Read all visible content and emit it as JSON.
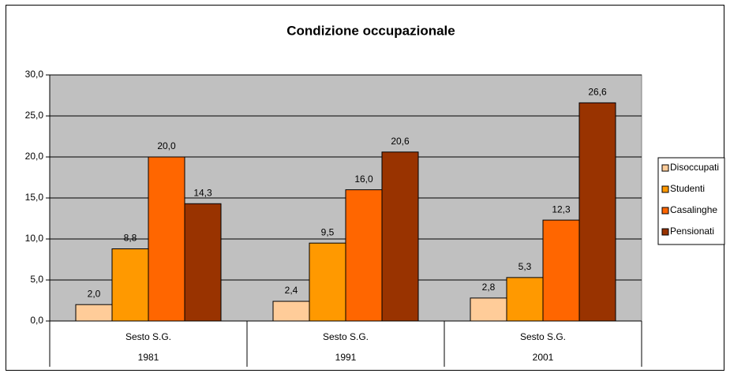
{
  "chart_data": {
    "type": "bar",
    "title": "Condizione occupazionale",
    "category_groups": [
      "Sesto S.G.",
      "Sesto S.G.",
      "Sesto S.G."
    ],
    "categories": [
      "1981",
      "1991",
      "2001"
    ],
    "series": [
      {
        "name": "Disoccupati",
        "color": "#ffcc99",
        "values": [
          2.0,
          2.4,
          2.8
        ],
        "value_labels": [
          "2,0",
          "2,4",
          "2,8"
        ]
      },
      {
        "name": "Studenti",
        "color": "#ff9900",
        "values": [
          8.8,
          9.5,
          5.3
        ],
        "value_labels": [
          "8,8",
          "9,5",
          "5,3"
        ]
      },
      {
        "name": "Casalinghe",
        "color": "#ff6600",
        "values": [
          20.0,
          16.0,
          12.3
        ],
        "value_labels": [
          "20,0",
          "16,0",
          "12,3"
        ]
      },
      {
        "name": "Pensionati",
        "color": "#993300",
        "values": [
          14.3,
          20.6,
          26.6
        ],
        "value_labels": [
          "14,3",
          "20,6",
          "26,6"
        ]
      }
    ],
    "ylim": [
      0,
      30
    ],
    "yticks": [
      {
        "value": 0,
        "label": "0,0"
      },
      {
        "value": 5,
        "label": "5,0"
      },
      {
        "value": 10,
        "label": "10,0"
      },
      {
        "value": 15,
        "label": "15,0"
      },
      {
        "value": 20,
        "label": "20,0"
      },
      {
        "value": 25,
        "label": "25,0"
      },
      {
        "value": 30,
        "label": "30,0"
      }
    ],
    "grid": true,
    "plot_background": "#c0c0c0",
    "legend": "right"
  }
}
